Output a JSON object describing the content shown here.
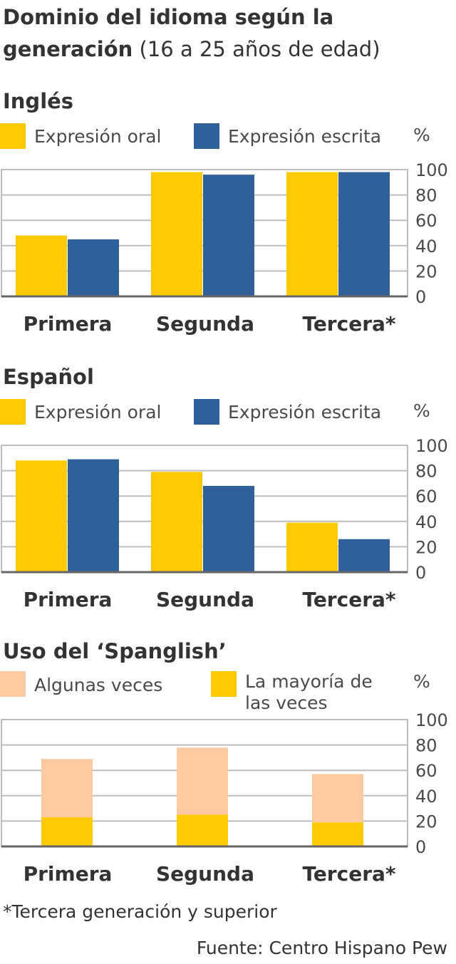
{
  "title": {
    "bold": "Dominio del idioma según la generación",
    "light": "(16 a 25 años de edad)"
  },
  "colors": {
    "yellow": "#fdc900",
    "blue": "#30609a",
    "peach": "#fdc9a0",
    "grid": "#bdbdbd",
    "axis": "#666666"
  },
  "chart_data": [
    {
      "type": "bar",
      "title": "Inglés",
      "unit": "%",
      "categories": [
        "Primera",
        "Segunda",
        "Tercera*"
      ],
      "series": [
        {
          "name": "Expresión oral",
          "color": "#fdc900",
          "values": [
            48,
            98,
            98
          ]
        },
        {
          "name": "Expresión escrita",
          "color": "#30609a",
          "values": [
            45,
            96,
            98
          ]
        }
      ],
      "yticks": [
        "100",
        "80",
        "60",
        "40",
        "20",
        "0"
      ],
      "ylim": [
        0,
        100
      ],
      "grid": true
    },
    {
      "type": "bar",
      "title": "Español",
      "unit": "%",
      "categories": [
        "Primera",
        "Segunda",
        "Tercera*"
      ],
      "series": [
        {
          "name": "Expresión oral",
          "color": "#fdc900",
          "values": [
            88,
            79,
            39
          ]
        },
        {
          "name": "Expresión escrita",
          "color": "#30609a",
          "values": [
            89,
            68,
            26
          ]
        }
      ],
      "yticks": [
        "100",
        "80",
        "60",
        "40",
        "20",
        "0"
      ],
      "ylim": [
        0,
        100
      ],
      "grid": true
    },
    {
      "type": "bar",
      "stacked": true,
      "title": "Uso del ‘Spanglish’",
      "unit": "%",
      "categories": [
        "Primera",
        "Segunda",
        "Tercera*"
      ],
      "series": [
        {
          "name": "La mayoría de las veces",
          "color": "#fdc900",
          "values": [
            23,
            25,
            19
          ]
        },
        {
          "name": "Algunas veces",
          "color": "#fdc9a0",
          "values": [
            46,
            53,
            38
          ]
        }
      ],
      "yticks": [
        "100",
        "80",
        "60",
        "40",
        "20",
        "0"
      ],
      "ylim": [
        0,
        100
      ],
      "grid": true
    }
  ],
  "footnote": "*Tercera generación y superior",
  "source": "Fuente: Centro Hispano Pew"
}
